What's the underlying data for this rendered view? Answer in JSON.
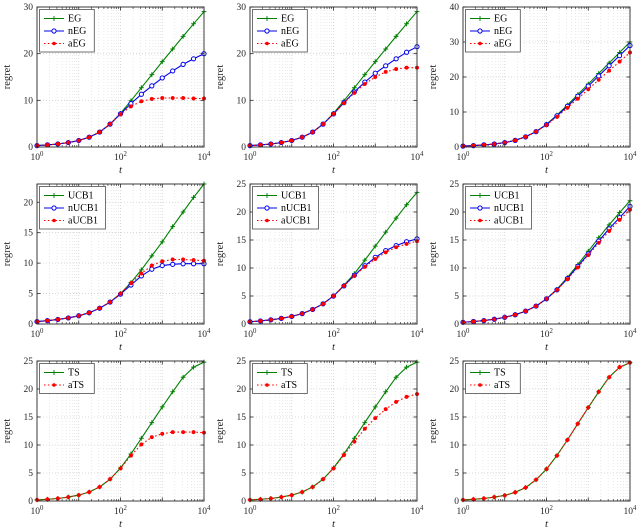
{
  "figure": {
    "xlabel": "t",
    "ylabel": "regret",
    "x_tick_exponents": [
      0,
      2,
      4
    ],
    "x_range_exponents": [
      0,
      4
    ],
    "x_exponents": [
      0,
      0.25,
      0.5,
      0.75,
      1,
      1.25,
      1.5,
      1.75,
      2,
      2.25,
      2.5,
      2.75,
      3,
      3.25,
      3.5,
      3.75,
      4
    ],
    "colors": {
      "green": "#008000",
      "blue": "#0000ee",
      "red": "#ff0000",
      "grid_major": "#cfcfcf",
      "grid_minor": "#e0e0e0",
      "axis": "#262626",
      "legend_border": "#4d4d4d",
      "background": "#ffffff"
    }
  },
  "chart_data": [
    {
      "id": "subplot-1-1",
      "type": "line",
      "xscale": "log",
      "ylim": [
        0,
        30
      ],
      "yticks": [
        0,
        10,
        20,
        30
      ],
      "xlabel": "t",
      "ylabel": "regret",
      "legend_position": "top-left",
      "series": [
        {
          "name": "EG",
          "color": "green",
          "line": "solid",
          "marker": "plus",
          "values": [
            0.3,
            0.45,
            0.65,
            0.95,
            1.4,
            2.1,
            3.2,
            4.9,
            7.2,
            9.9,
            12.7,
            15.5,
            18.3,
            21.0,
            23.7,
            26.4,
            29.0
          ]
        },
        {
          "name": "nEG",
          "color": "blue",
          "line": "solid",
          "marker": "circle-open",
          "values": [
            0.3,
            0.45,
            0.65,
            0.95,
            1.4,
            2.1,
            3.2,
            4.9,
            7.1,
            9.3,
            11.3,
            13.1,
            14.8,
            16.3,
            17.7,
            18.9,
            20.0
          ]
        },
        {
          "name": "aEG",
          "color": "red",
          "line": "dotted",
          "marker": "circle-filled",
          "values": [
            0.3,
            0.45,
            0.65,
            0.95,
            1.4,
            2.1,
            3.2,
            4.9,
            7.0,
            8.7,
            9.8,
            10.3,
            10.5,
            10.5,
            10.5,
            10.4,
            10.4
          ]
        }
      ]
    },
    {
      "id": "subplot-1-2",
      "type": "line",
      "xscale": "log",
      "ylim": [
        0,
        30
      ],
      "yticks": [
        0,
        10,
        20,
        30
      ],
      "xlabel": "t",
      "ylabel": "regret",
      "legend_position": "top-left",
      "series": [
        {
          "name": "EG",
          "color": "green",
          "line": "solid",
          "marker": "plus",
          "values": [
            0.3,
            0.45,
            0.65,
            0.95,
            1.4,
            2.1,
            3.2,
            4.9,
            7.2,
            9.9,
            12.7,
            15.5,
            18.3,
            21.0,
            23.7,
            26.4,
            29.0
          ]
        },
        {
          "name": "nEG",
          "color": "blue",
          "line": "solid",
          "marker": "circle-open",
          "values": [
            0.3,
            0.45,
            0.65,
            0.95,
            1.4,
            2.1,
            3.2,
            4.9,
            7.1,
            9.5,
            11.8,
            13.9,
            15.8,
            17.4,
            18.9,
            20.3,
            21.5
          ]
        },
        {
          "name": "aEG",
          "color": "red",
          "line": "dotted",
          "marker": "circle-filled",
          "values": [
            0.3,
            0.45,
            0.65,
            0.95,
            1.4,
            2.1,
            3.2,
            4.9,
            7.1,
            9.4,
            11.6,
            13.5,
            15.0,
            16.1,
            16.7,
            17.0,
            17.0
          ]
        }
      ]
    },
    {
      "id": "subplot-1-3",
      "type": "line",
      "xscale": "log",
      "ylim": [
        0,
        40
      ],
      "yticks": [
        0,
        10,
        20,
        30,
        40
      ],
      "xlabel": "t",
      "ylabel": "regret",
      "legend_position": "top-left",
      "series": [
        {
          "name": "EG",
          "color": "green",
          "line": "solid",
          "marker": "plus",
          "values": [
            0.25,
            0.4,
            0.6,
            0.85,
            1.25,
            1.9,
            2.9,
            4.4,
            6.5,
            9.1,
            12.0,
            15.0,
            18.0,
            21.0,
            24.0,
            27.0,
            30.0
          ]
        },
        {
          "name": "nEG",
          "color": "blue",
          "line": "solid",
          "marker": "circle-open",
          "values": [
            0.25,
            0.4,
            0.6,
            0.85,
            1.25,
            1.9,
            2.9,
            4.4,
            6.4,
            8.9,
            11.6,
            14.5,
            17.4,
            20.3,
            23.2,
            26.1,
            29.0
          ]
        },
        {
          "name": "aEG",
          "color": "red",
          "line": "dotted",
          "marker": "circle-filled",
          "values": [
            0.25,
            0.4,
            0.6,
            0.85,
            1.25,
            1.9,
            2.9,
            4.4,
            6.3,
            8.6,
            11.2,
            13.8,
            16.5,
            19.2,
            21.8,
            24.4,
            27.0
          ]
        }
      ]
    },
    {
      "id": "subplot-2-1",
      "type": "line",
      "xscale": "log",
      "ylim": [
        0,
        23
      ],
      "yticks": [
        0,
        5,
        10,
        15,
        20
      ],
      "xlabel": "t",
      "ylabel": "regret",
      "legend_position": "top-left",
      "series": [
        {
          "name": "UCB1",
          "color": "green",
          "line": "solid",
          "marker": "plus",
          "values": [
            0.4,
            0.55,
            0.75,
            1.0,
            1.35,
            1.85,
            2.6,
            3.6,
            5.0,
            6.8,
            8.9,
            11.2,
            13.5,
            16.0,
            18.4,
            20.8,
            23.0
          ]
        },
        {
          "name": "nUCB1",
          "color": "blue",
          "line": "solid",
          "marker": "circle-open",
          "values": [
            0.4,
            0.55,
            0.75,
            1.0,
            1.35,
            1.85,
            2.6,
            3.6,
            4.9,
            6.4,
            7.9,
            9.0,
            9.6,
            9.8,
            9.9,
            9.9,
            9.9
          ]
        },
        {
          "name": "aUCB1",
          "color": "red",
          "line": "dotted",
          "marker": "circle-filled",
          "values": [
            0.4,
            0.55,
            0.75,
            1.0,
            1.35,
            1.85,
            2.6,
            3.6,
            5.0,
            6.7,
            8.3,
            9.6,
            10.3,
            10.6,
            10.6,
            10.5,
            10.4
          ]
        }
      ]
    },
    {
      "id": "subplot-2-2",
      "type": "line",
      "xscale": "log",
      "ylim": [
        0,
        25
      ],
      "yticks": [
        0,
        5,
        10,
        15,
        20,
        25
      ],
      "xlabel": "t",
      "ylabel": "regret",
      "legend_position": "top-left",
      "series": [
        {
          "name": "UCB1",
          "color": "green",
          "line": "solid",
          "marker": "plus",
          "values": [
            0.4,
            0.55,
            0.75,
            1.0,
            1.35,
            1.85,
            2.6,
            3.6,
            5.0,
            6.9,
            9.0,
            11.4,
            13.9,
            16.4,
            18.9,
            21.3,
            23.5
          ]
        },
        {
          "name": "nUCB1",
          "color": "blue",
          "line": "solid",
          "marker": "circle-open",
          "values": [
            0.4,
            0.55,
            0.75,
            1.0,
            1.35,
            1.85,
            2.6,
            3.6,
            5.0,
            6.8,
            8.7,
            10.4,
            11.9,
            13.1,
            14.0,
            14.7,
            15.2
          ]
        },
        {
          "name": "aUCB1",
          "color": "red",
          "line": "dotted",
          "marker": "circle-filled",
          "values": [
            0.4,
            0.55,
            0.75,
            1.0,
            1.35,
            1.85,
            2.6,
            3.6,
            5.0,
            6.8,
            8.6,
            10.2,
            11.6,
            12.8,
            13.7,
            14.3,
            14.8
          ]
        }
      ]
    },
    {
      "id": "subplot-2-3",
      "type": "line",
      "xscale": "log",
      "ylim": [
        0,
        25
      ],
      "yticks": [
        0,
        5,
        10,
        15,
        20,
        25
      ],
      "xlabel": "t",
      "ylabel": "regret",
      "legend_position": "top-left",
      "series": [
        {
          "name": "UCB1",
          "color": "green",
          "line": "solid",
          "marker": "plus",
          "values": [
            0.3,
            0.45,
            0.6,
            0.85,
            1.2,
            1.65,
            2.3,
            3.2,
            4.5,
            6.2,
            8.3,
            10.6,
            13.0,
            15.4,
            17.7,
            19.9,
            22.0
          ]
        },
        {
          "name": "nUCB1",
          "color": "blue",
          "line": "solid",
          "marker": "circle-open",
          "values": [
            0.3,
            0.45,
            0.6,
            0.85,
            1.2,
            1.65,
            2.3,
            3.2,
            4.5,
            6.1,
            8.1,
            10.3,
            12.5,
            14.8,
            17.0,
            19.0,
            21.0
          ]
        },
        {
          "name": "aUCB1",
          "color": "red",
          "line": "dotted",
          "marker": "circle-filled",
          "values": [
            0.3,
            0.45,
            0.6,
            0.85,
            1.2,
            1.65,
            2.3,
            3.2,
            4.5,
            6.1,
            8.0,
            10.1,
            12.3,
            14.5,
            16.6,
            18.6,
            20.4
          ]
        }
      ]
    },
    {
      "id": "subplot-3-1",
      "type": "line",
      "xscale": "log",
      "ylim": [
        0,
        25
      ],
      "yticks": [
        0,
        5,
        10,
        15,
        20,
        25
      ],
      "xlabel": "t",
      "ylabel": "regret",
      "legend_position": "top-left",
      "series": [
        {
          "name": "TS",
          "color": "green",
          "line": "solid",
          "marker": "plus",
          "values": [
            0.2,
            0.3,
            0.45,
            0.7,
            1.05,
            1.6,
            2.5,
            3.9,
            5.9,
            8.4,
            11.2,
            14.0,
            16.8,
            19.5,
            22.1,
            23.9,
            24.8
          ]
        },
        {
          "name": "aTS",
          "color": "red",
          "line": "dotted",
          "marker": "circle-filled",
          "values": [
            0.2,
            0.3,
            0.45,
            0.7,
            1.05,
            1.6,
            2.5,
            3.9,
            5.8,
            8.1,
            10.1,
            11.4,
            12.0,
            12.3,
            12.3,
            12.3,
            12.2
          ]
        }
      ]
    },
    {
      "id": "subplot-3-2",
      "type": "line",
      "xscale": "log",
      "ylim": [
        0,
        25
      ],
      "yticks": [
        0,
        5,
        10,
        15,
        20,
        25
      ],
      "xlabel": "t",
      "ylabel": "regret",
      "legend_position": "top-left",
      "series": [
        {
          "name": "TS",
          "color": "green",
          "line": "solid",
          "marker": "plus",
          "values": [
            0.2,
            0.3,
            0.45,
            0.7,
            1.05,
            1.6,
            2.5,
            3.9,
            5.9,
            8.4,
            11.2,
            14.0,
            16.8,
            19.5,
            22.1,
            23.9,
            24.8
          ]
        },
        {
          "name": "aTS",
          "color": "red",
          "line": "dotted",
          "marker": "circle-filled",
          "values": [
            0.2,
            0.3,
            0.45,
            0.7,
            1.05,
            1.6,
            2.5,
            3.9,
            5.8,
            8.2,
            10.6,
            12.9,
            14.8,
            16.4,
            17.7,
            18.6,
            19.1
          ]
        }
      ]
    },
    {
      "id": "subplot-3-3",
      "type": "line",
      "xscale": "log",
      "ylim": [
        0,
        25
      ],
      "yticks": [
        0,
        5,
        10,
        15,
        20,
        25
      ],
      "xlabel": "t",
      "ylabel": "regret",
      "legend_position": "top-left",
      "series": [
        {
          "name": "TS",
          "color": "green",
          "line": "solid",
          "marker": "plus",
          "values": [
            0.2,
            0.3,
            0.45,
            0.7,
            1.0,
            1.55,
            2.4,
            3.8,
            5.7,
            8.1,
            10.9,
            13.8,
            16.7,
            19.5,
            22.1,
            23.9,
            24.7
          ]
        },
        {
          "name": "aTS",
          "color": "red",
          "line": "dotted",
          "marker": "circle-filled",
          "values": [
            0.2,
            0.3,
            0.45,
            0.7,
            1.0,
            1.55,
            2.4,
            3.8,
            5.7,
            8.1,
            10.9,
            13.8,
            16.7,
            19.5,
            22.1,
            23.9,
            24.7
          ]
        }
      ]
    }
  ]
}
